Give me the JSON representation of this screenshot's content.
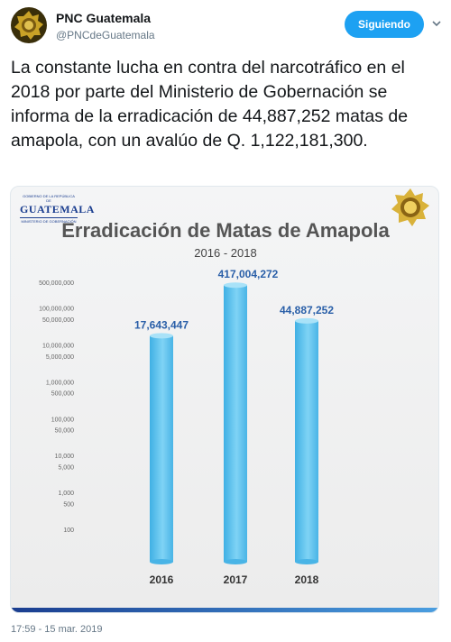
{
  "account": {
    "name": "PNC Guatemala",
    "handle": "@PNCdeGuatemala",
    "follow_label": "Siguiendo"
  },
  "tweet": {
    "text": "La constante lucha en contra del narcotráfico en el 2018 por parte del Ministerio de Gobernación se informa de la erradicación de 44,887,252 matas de amapola, con un avalúo de Q. 1,122,181,300.",
    "timestamp": "17:59 - 15 mar. 2019"
  },
  "card": {
    "logo_small": "GOBIERNO DE LA REPÚBLICA DE",
    "logo_big": "GUATEMALA",
    "logo_sub": "MINISTERIO DE GOBERNACIÓN"
  },
  "colors": {
    "accent": "#1da1f2",
    "bar": "#5bc2ec",
    "label": "#2a5fa8"
  },
  "chart_data": {
    "type": "bar",
    "title": "Erradicación de Matas de Amapola",
    "subtitle": "2016 - 2018",
    "categories": [
      "2016",
      "2017",
      "2018"
    ],
    "values": [
      17643447,
      417004272,
      44887252
    ],
    "value_labels": [
      "17,643,447",
      "417,004,272",
      "44,887,252"
    ],
    "y_ticks": [
      "500,000,000",
      "100,000,000",
      "50,000,000",
      "10,000,000",
      "5,000,000",
      "1,000,000",
      "500,000",
      "100,000",
      "50,000",
      "10,000",
      "5,000",
      "1,000",
      "500",
      "100"
    ],
    "y_tick_values": [
      500000000,
      100000000,
      50000000,
      10000000,
      5000000,
      1000000,
      500000,
      100000,
      50000,
      10000,
      5000,
      1000,
      500,
      100
    ],
    "y_scale": "log",
    "ylim": [
      100,
      500000000
    ],
    "grid": false,
    "legend": "none"
  }
}
